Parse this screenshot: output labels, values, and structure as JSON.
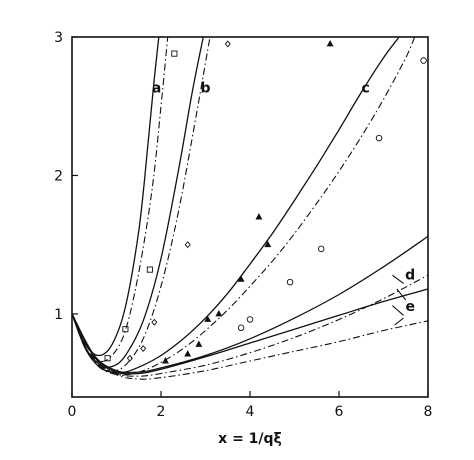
{
  "chart_data": {
    "type": "line",
    "title": "",
    "xlabel": "x = 1/qξ",
    "ylabel": "",
    "xlim": [
      0,
      8
    ],
    "ylim": [
      0.4,
      3.0
    ],
    "xticks": [
      0,
      2,
      4,
      6,
      8
    ],
    "yticks": [
      1,
      2,
      3
    ],
    "grid": false,
    "curve_labels": [
      "a",
      "b",
      "c",
      "d",
      "e"
    ],
    "series": [
      {
        "label_ref": "a",
        "style": "solid",
        "x": [
          0,
          0.3,
          0.6,
          0.9,
          1.2,
          1.5,
          1.7,
          1.85,
          1.95
        ],
        "y": [
          1.0,
          0.78,
          0.7,
          0.78,
          1.05,
          1.6,
          2.2,
          2.7,
          3.0
        ]
      },
      {
        "label_ref": "a",
        "style": "dashdot",
        "x": [
          0,
          0.3,
          0.6,
          0.9,
          1.2,
          1.5,
          1.8,
          2.0,
          2.15
        ],
        "y": [
          1.0,
          0.76,
          0.66,
          0.7,
          0.88,
          1.3,
          1.9,
          2.5,
          3.0
        ]
      },
      {
        "label_ref": "b",
        "style": "solid",
        "x": [
          0,
          0.3,
          0.6,
          0.9,
          1.2,
          1.6,
          2.0,
          2.4,
          2.7,
          2.95
        ],
        "y": [
          1.0,
          0.76,
          0.64,
          0.62,
          0.7,
          0.95,
          1.4,
          2.05,
          2.6,
          3.0
        ]
      },
      {
        "label_ref": "b",
        "style": "dashdot",
        "x": [
          0,
          0.3,
          0.6,
          0.9,
          1.2,
          1.6,
          2.0,
          2.4,
          2.8,
          3.1
        ],
        "y": [
          1.0,
          0.75,
          0.63,
          0.59,
          0.63,
          0.82,
          1.2,
          1.75,
          2.45,
          3.0
        ]
      },
      {
        "label_ref": "c",
        "style": "solid",
        "x": [
          0,
          0.3,
          0.6,
          0.9,
          1.2,
          1.6,
          2.0,
          2.5,
          3.0,
          3.5,
          4.0,
          4.5,
          5.0,
          5.5,
          6.0,
          6.5,
          7.0,
          7.35
        ],
        "y": [
          1.0,
          0.75,
          0.62,
          0.58,
          0.58,
          0.63,
          0.7,
          0.82,
          0.97,
          1.15,
          1.36,
          1.58,
          1.82,
          2.07,
          2.33,
          2.6,
          2.85,
          3.0
        ]
      },
      {
        "label_ref": "c",
        "style": "dashdot",
        "x": [
          0,
          0.3,
          0.6,
          0.9,
          1.2,
          1.6,
          2.0,
          2.5,
          3.0,
          3.5,
          4.0,
          4.5,
          5.0,
          5.5,
          6.0,
          6.5,
          7.0,
          7.5,
          7.7
        ],
        "y": [
          1.0,
          0.75,
          0.62,
          0.57,
          0.56,
          0.59,
          0.65,
          0.75,
          0.88,
          1.03,
          1.2,
          1.38,
          1.58,
          1.8,
          2.03,
          2.28,
          2.55,
          2.85,
          3.0
        ]
      },
      {
        "label_ref": "d",
        "style": "solid",
        "x": [
          0,
          0.5,
          1.0,
          1.5,
          2,
          3,
          4,
          5,
          6,
          7,
          8
        ],
        "y": [
          1.0,
          0.7,
          0.59,
          0.58,
          0.61,
          0.7,
          0.82,
          0.97,
          1.14,
          1.34,
          1.56
        ]
      },
      {
        "label_ref": "d",
        "style": "dashdot",
        "x": [
          0,
          0.5,
          1.0,
          1.5,
          2,
          3,
          4,
          5,
          6,
          7,
          8
        ],
        "y": [
          1.0,
          0.69,
          0.57,
          0.55,
          0.57,
          0.63,
          0.72,
          0.83,
          0.96,
          1.11,
          1.28
        ]
      },
      {
        "label_ref": "e",
        "style": "solid",
        "x": [
          0,
          0.5,
          1.0,
          1.5,
          2,
          3,
          4,
          5,
          6,
          7,
          8
        ],
        "y": [
          1.0,
          0.69,
          0.58,
          0.57,
          0.6,
          0.69,
          0.79,
          0.89,
          0.99,
          1.09,
          1.18
        ]
      },
      {
        "label_ref": "e",
        "style": "dashdot",
        "x": [
          0,
          0.5,
          1.0,
          1.5,
          2,
          3,
          4,
          5,
          6,
          7,
          8
        ],
        "y": [
          1.0,
          0.68,
          0.56,
          0.53,
          0.54,
          0.59,
          0.66,
          0.73,
          0.8,
          0.88,
          0.95
        ]
      }
    ],
    "markers": [
      {
        "shape": "square",
        "points": [
          [
            0.8,
            0.68
          ],
          [
            1.2,
            0.89
          ],
          [
            1.75,
            1.32
          ],
          [
            2.3,
            2.88
          ]
        ]
      },
      {
        "shape": "diamond",
        "points": [
          [
            1.3,
            0.68
          ],
          [
            1.6,
            0.75
          ],
          [
            1.85,
            0.94
          ],
          [
            2.6,
            1.5
          ],
          [
            3.5,
            2.95
          ]
        ]
      },
      {
        "shape": "triangle",
        "points": [
          [
            2.1,
            0.66
          ],
          [
            2.6,
            0.71
          ],
          [
            2.85,
            0.78
          ],
          [
            3.05,
            0.96
          ],
          [
            3.3,
            1.0
          ],
          [
            4.2,
            1.7
          ],
          [
            4.4,
            1.5
          ],
          [
            5.8,
            2.95
          ],
          [
            3.8,
            1.25
          ]
        ]
      },
      {
        "shape": "circle",
        "points": [
          [
            3.8,
            0.9
          ],
          [
            4.0,
            0.96
          ],
          [
            4.9,
            1.23
          ],
          [
            5.6,
            1.47
          ],
          [
            6.9,
            2.27
          ],
          [
            7.9,
            2.83
          ]
        ]
      }
    ]
  }
}
